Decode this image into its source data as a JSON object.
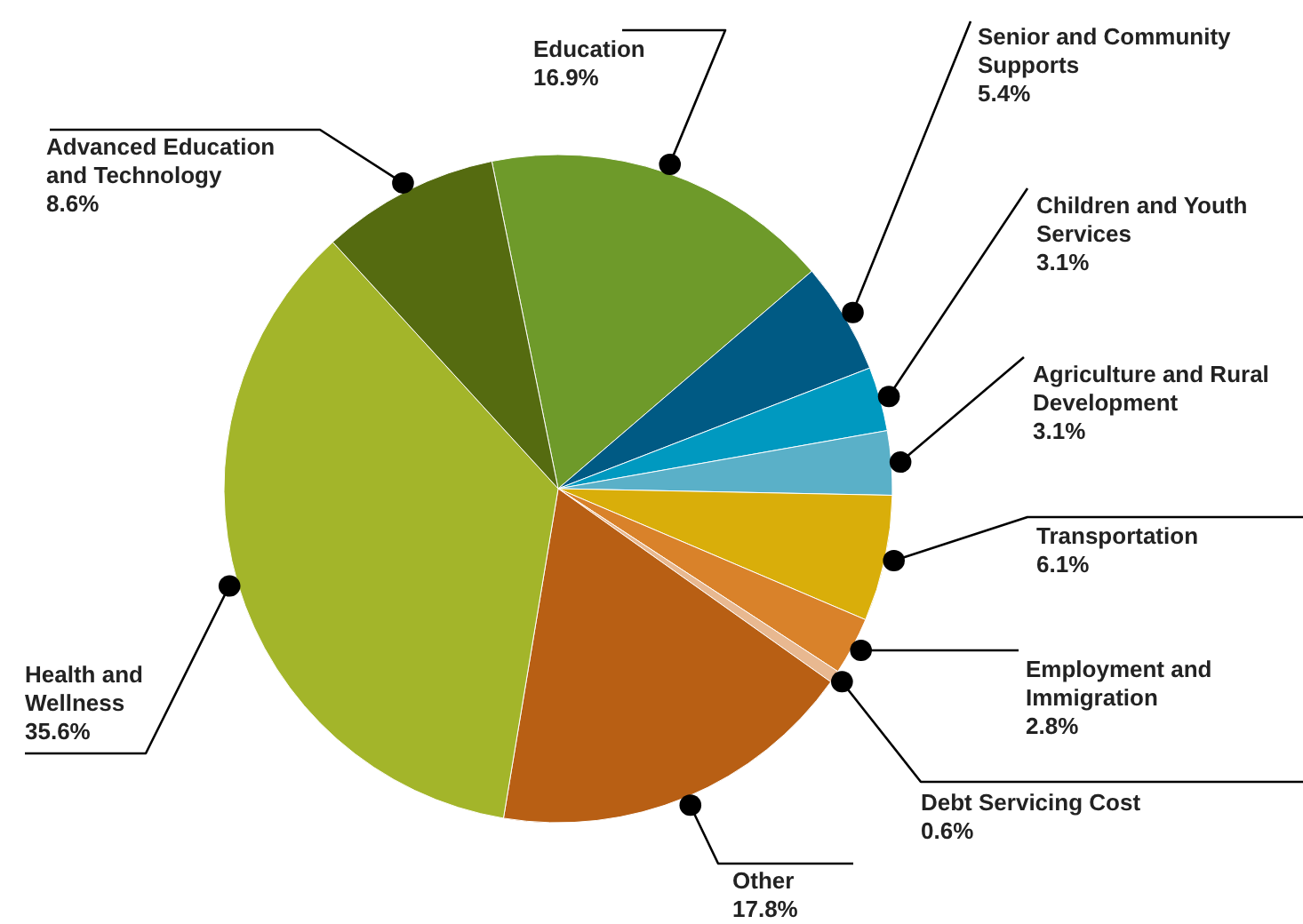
{
  "chart_data": {
    "type": "pie",
    "categories": [
      "Education",
      "Senior and Community Supports",
      "Children and Youth Services",
      "Agriculture and Rural Development",
      "Transportation",
      "Employment and Immigration",
      "Debt Servicing Cost",
      "Other",
      "Health and Wellness",
      "Advanced Education and Technology"
    ],
    "values": [
      16.9,
      5.4,
      3.1,
      3.1,
      6.1,
      2.8,
      0.6,
      17.8,
      35.6,
      8.6
    ],
    "colors": [
      "#6e9a2a",
      "#005a84",
      "#0099c0",
      "#5ab0c8",
      "#d9ae0a",
      "#d9822a",
      "#e8b890",
      "#b85f14",
      "#a3b52a",
      "#556b10"
    ],
    "value_labels": [
      "16.9%",
      "5.4%",
      "3.1%",
      "3.1%",
      "6.1%",
      "2.8%",
      "0.6%",
      "17.8%",
      "35.6%",
      "8.6%"
    ]
  }
}
